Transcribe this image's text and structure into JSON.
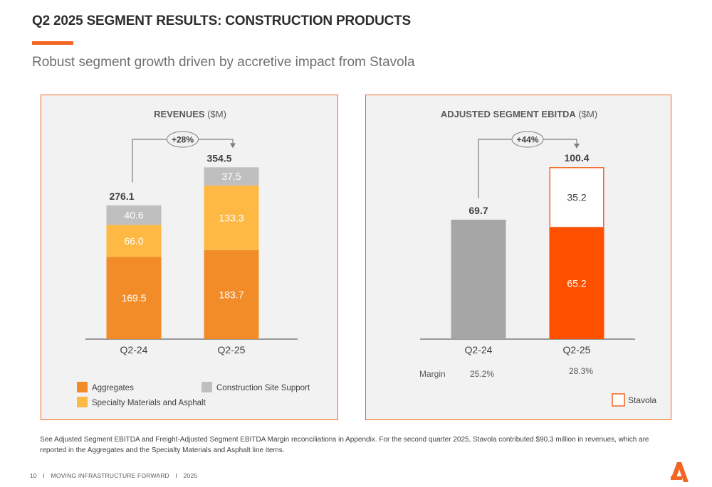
{
  "page": {
    "title": "Q2 2025 SEGMENT RESULTS: CONSTRUCTION PRODUCTS",
    "subtitle": "Robust segment growth driven by accretive impact from Stavola",
    "footnote": "See Adjusted Segment EBITDA and Freight-Adjusted Segment EBITDA Margin reconciliations in Appendix.  For the second quarter 2025, Stavola contributed $90.3 million in revenues, which are reported in the Aggregates and the Specialty Materials and Asphalt line items.",
    "footer": {
      "page_number": "10",
      "sep": "I",
      "tagline": "MOVING INFRASTRUCTURE FORWARD",
      "year": "2025"
    }
  },
  "colors": {
    "accent": "#f26522",
    "aggregates": "#f28c28",
    "specialty": "#fdb944",
    "site_support": "#bfbfbf",
    "ebitda_prior": "#a6a6a6",
    "ebitda_current": "#ff5000",
    "stavola_outline": "#f26522"
  },
  "chart_data": [
    {
      "type": "bar",
      "stacked": true,
      "title": "REVENUES",
      "title_unit": "($M)",
      "categories": [
        "Q2-24",
        "Q2-25"
      ],
      "series": [
        {
          "name": "Aggregates",
          "values": [
            169.5,
            183.7
          ],
          "labels": [
            "169.5",
            "183.7"
          ]
        },
        {
          "name": "Specialty Materials and Asphalt",
          "values": [
            66.0,
            133.3
          ],
          "labels": [
            "66.0",
            "133.3"
          ]
        },
        {
          "name": "Construction Site Support",
          "values": [
            40.6,
            37.5
          ],
          "labels": [
            "40.6",
            "37.5"
          ]
        }
      ],
      "totals": [
        276.1,
        354.5
      ],
      "total_labels": [
        "276.1",
        "354.5"
      ],
      "growth_label": "+28%",
      "ylim": [
        0,
        400
      ],
      "legend_position": "bottom"
    },
    {
      "type": "bar",
      "stacked": true,
      "title": "ADJUSTED SEGMENT EBITDA",
      "title_unit": "($M)",
      "categories": [
        "Q2-24",
        "Q2-25"
      ],
      "series": [
        {
          "values": [
            69.7,
            65.2
          ],
          "labels": [
            "",
            "65.2"
          ]
        },
        {
          "name": "Stavola",
          "values": [
            0,
            35.2
          ],
          "labels": [
            "",
            "35.2"
          ]
        }
      ],
      "totals": [
        69.7,
        100.4
      ],
      "total_labels": [
        "69.7",
        "100.4"
      ],
      "growth_label": "+44%",
      "margin_label": "Margin",
      "margins": [
        "25.2%",
        "28.3%"
      ],
      "ylim": [
        0,
        110
      ],
      "legend_position": "bottom-right"
    }
  ]
}
